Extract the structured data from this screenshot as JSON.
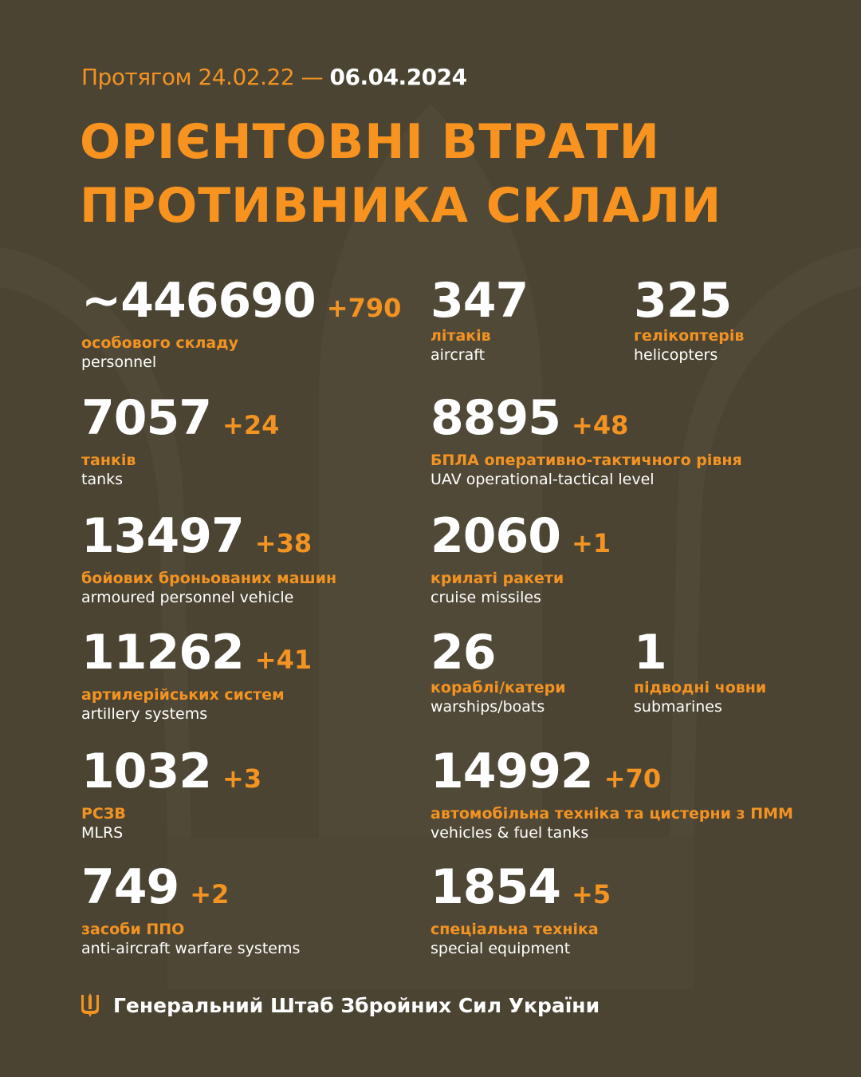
{
  "header": {
    "period_prefix": "Протягом 24.02.22 —",
    "period_end": "06.04.2024",
    "title_line1": "ОРІЄНТОВНІ ВТРАТИ",
    "title_line2": "ПРОТИВНИКА СКЛАЛИ"
  },
  "colors": {
    "background": "#4b4433",
    "accent": "#f29322",
    "text": "#ffffff"
  },
  "stats": [
    {
      "value": "~446690",
      "delta": "+790",
      "ua": "особового складу",
      "en": "personnel"
    },
    {
      "value": "347",
      "delta": "",
      "ua": "літаків",
      "en": "aircraft"
    },
    {
      "value": "325",
      "delta": "",
      "ua": "гелікоптерів",
      "en": "helicopters"
    },
    {
      "value": "7057",
      "delta": "+24",
      "ua": "танків",
      "en": "tanks"
    },
    {
      "value": "8895",
      "delta": "+48",
      "ua": "БПЛА оперативно-тактичного рівня",
      "en": "UAV operational-tactical level"
    },
    {
      "value": "13497",
      "delta": "+38",
      "ua": "бойових броньованих машин",
      "en": "armoured personnel vehicle"
    },
    {
      "value": "2060",
      "delta": "+1",
      "ua": "крилаті ракети",
      "en": "cruise missiles"
    },
    {
      "value": "11262",
      "delta": "+41",
      "ua": "артилерійських систем",
      "en": "artillery systems"
    },
    {
      "value": "26",
      "delta": "",
      "ua": "кораблі/катери",
      "en": "warships/boats"
    },
    {
      "value": "1",
      "delta": "",
      "ua": "підводні човни",
      "en": "submarines"
    },
    {
      "value": "1032",
      "delta": "+3",
      "ua": "РСЗВ",
      "en": "MLRS"
    },
    {
      "value": "14992",
      "delta": "+70",
      "ua": "автомобільна техніка та цистерни з ПММ",
      "en": "vehicles & fuel tanks"
    },
    {
      "value": "749",
      "delta": "+2",
      "ua": "засоби ППО",
      "en": "anti-aircraft warfare systems"
    },
    {
      "value": "1854",
      "delta": "+5",
      "ua": "спеціальна техніка",
      "en": "special equipment"
    }
  ],
  "footer": {
    "icon": "trident-icon",
    "text": "Генеральний Штаб Збройних Сил України"
  }
}
